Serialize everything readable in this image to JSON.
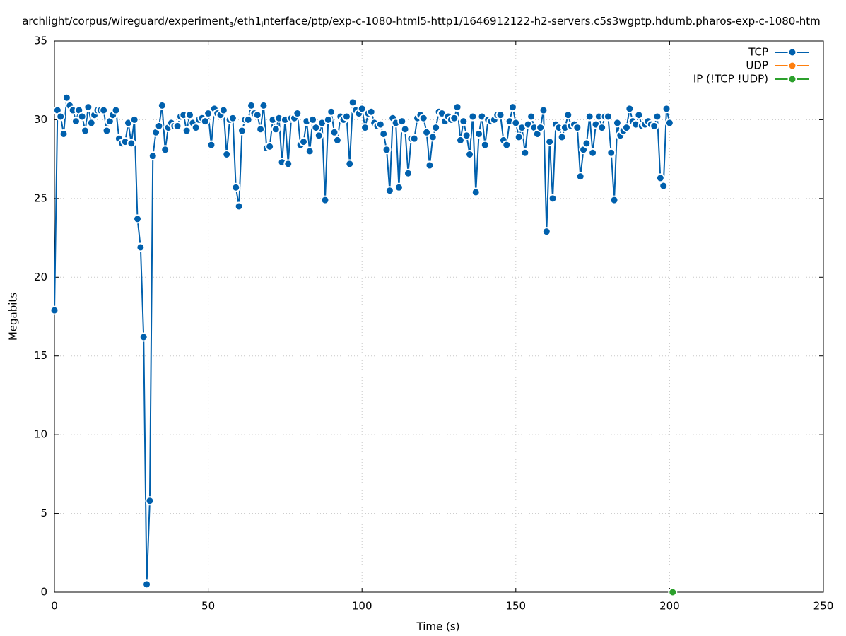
{
  "chart_data": {
    "type": "line",
    "title_parts": [
      "archlight/corpus/wireguard/experiment",
      "3",
      "/eth1",
      "i",
      "nterface/ptp/exp-c-1080-html5-http1/1646912122-h2-servers.c5s3wgptp.hdumb.pharos-exp-c-1080-htm"
    ],
    "xlabel": "Time (s)",
    "ylabel": "Megabits",
    "xlim": [
      0,
      250
    ],
    "xticks": [
      0,
      50,
      100,
      150,
      200,
      250
    ],
    "ylim": [
      0,
      35
    ],
    "yticks": [
      0,
      5,
      10,
      15,
      20,
      25,
      30,
      35
    ],
    "grid": true,
    "legend": "top-right",
    "series": [
      {
        "name": "TCP",
        "color": "#0060ad",
        "x": [
          0,
          1,
          2,
          3,
          4,
          5,
          6,
          7,
          8,
          9,
          10,
          11,
          12,
          13,
          14,
          15,
          16,
          17,
          18,
          19,
          20,
          21,
          22,
          23,
          24,
          25,
          26,
          27,
          28,
          29,
          30,
          31,
          32,
          33,
          34,
          35,
          36,
          37,
          38,
          39,
          40,
          41,
          42,
          43,
          44,
          45,
          46,
          47,
          48,
          49,
          50,
          51,
          52,
          53,
          54,
          55,
          56,
          57,
          58,
          59,
          60,
          61,
          62,
          63,
          64,
          65,
          66,
          67,
          68,
          69,
          70,
          71,
          72,
          73,
          74,
          75,
          76,
          77,
          78,
          79,
          80,
          81,
          82,
          83,
          84,
          85,
          86,
          87,
          88,
          89,
          90,
          91,
          92,
          93,
          94,
          95,
          96,
          97,
          98,
          99,
          100,
          101,
          102,
          103,
          104,
          105,
          106,
          107,
          108,
          109,
          110,
          111,
          112,
          113,
          114,
          115,
          116,
          117,
          118,
          119,
          120,
          121,
          122,
          123,
          124,
          125,
          126,
          127,
          128,
          129,
          130,
          131,
          132,
          133,
          134,
          135,
          136,
          137,
          138,
          139,
          140,
          141,
          142,
          143,
          144,
          145,
          146,
          147,
          148,
          149,
          150,
          151,
          152,
          153,
          154,
          155,
          156,
          157,
          158,
          159,
          160,
          161,
          162,
          163,
          164,
          165,
          166,
          167,
          168,
          169,
          170,
          171,
          172,
          173,
          174,
          175,
          176,
          177,
          178,
          179,
          180,
          181,
          182,
          183,
          184,
          185,
          186,
          187,
          188,
          189,
          190,
          191,
          192,
          193,
          194,
          195,
          196,
          197,
          198,
          199,
          200
        ],
        "values": [
          17.9,
          30.6,
          30.2,
          29.1,
          31.4,
          30.9,
          30.6,
          29.9,
          30.6,
          30.2,
          29.3,
          30.8,
          29.8,
          30.3,
          30.6,
          30.6,
          30.6,
          29.3,
          29.9,
          30.3,
          30.6,
          28.8,
          28.5,
          28.6,
          29.8,
          28.5,
          30.0,
          23.7,
          21.9,
          16.2,
          0.5,
          5.8,
          27.7,
          29.2,
          29.6,
          30.9,
          28.1,
          29.5,
          29.8,
          29.6,
          29.6,
          30.2,
          30.3,
          29.3,
          30.3,
          29.8,
          29.5,
          30.0,
          30.1,
          29.9,
          30.4,
          28.4,
          30.7,
          30.4,
          30.3,
          30.6,
          27.8,
          30.0,
          30.1,
          25.7,
          24.5,
          29.3,
          30.0,
          30.0,
          30.9,
          30.4,
          30.3,
          29.4,
          30.9,
          28.2,
          28.3,
          30.0,
          29.4,
          30.1,
          27.3,
          30.0,
          27.2,
          30.1,
          30.1,
          30.4,
          28.4,
          28.6,
          29.9,
          28.0,
          30.0,
          29.5,
          29.0,
          29.8,
          24.9,
          30.0,
          30.5,
          29.2,
          28.7,
          30.2,
          30.0,
          30.2,
          27.2,
          31.1,
          30.6,
          30.4,
          30.7,
          29.5,
          30.4,
          30.5,
          29.8,
          29.6,
          29.7,
          29.1,
          28.1,
          25.5,
          30.1,
          29.8,
          25.7,
          29.9,
          29.4,
          26.6,
          28.8,
          28.8,
          30.1,
          30.3,
          30.1,
          29.2,
          27.1,
          28.9,
          29.5,
          30.5,
          30.4,
          29.9,
          30.2,
          30.0,
          30.1,
          30.8,
          28.7,
          29.9,
          29.0,
          27.8,
          30.2,
          25.4,
          29.1,
          30.2,
          28.4,
          30.0,
          29.9,
          30.0,
          30.3,
          30.3,
          28.7,
          28.4,
          29.9,
          30.8,
          29.8,
          28.9,
          29.5,
          27.9,
          29.7,
          30.2,
          29.5,
          29.1,
          29.5,
          30.6,
          22.9,
          28.6,
          25.0,
          29.7,
          29.5,
          28.9,
          29.5,
          30.3,
          29.6,
          29.7,
          29.5,
          26.4,
          28.1,
          28.5,
          30.2,
          27.9,
          29.7,
          30.2,
          29.5,
          30.2,
          30.2,
          27.9,
          24.9,
          29.8,
          29.0,
          29.3,
          29.5,
          30.7,
          29.9,
          29.7,
          30.3,
          29.6,
          29.7,
          29.9,
          29.7,
          29.6,
          30.2,
          26.3,
          25.8,
          30.7,
          29.8
        ]
      },
      {
        "name": "UDP",
        "color": "#ff7f0e",
        "x": [],
        "values": []
      },
      {
        "name": "IP (!TCP  !UDP)",
        "color": "#2ca02c",
        "x": [
          201
        ],
        "values": [
          0
        ]
      }
    ]
  }
}
